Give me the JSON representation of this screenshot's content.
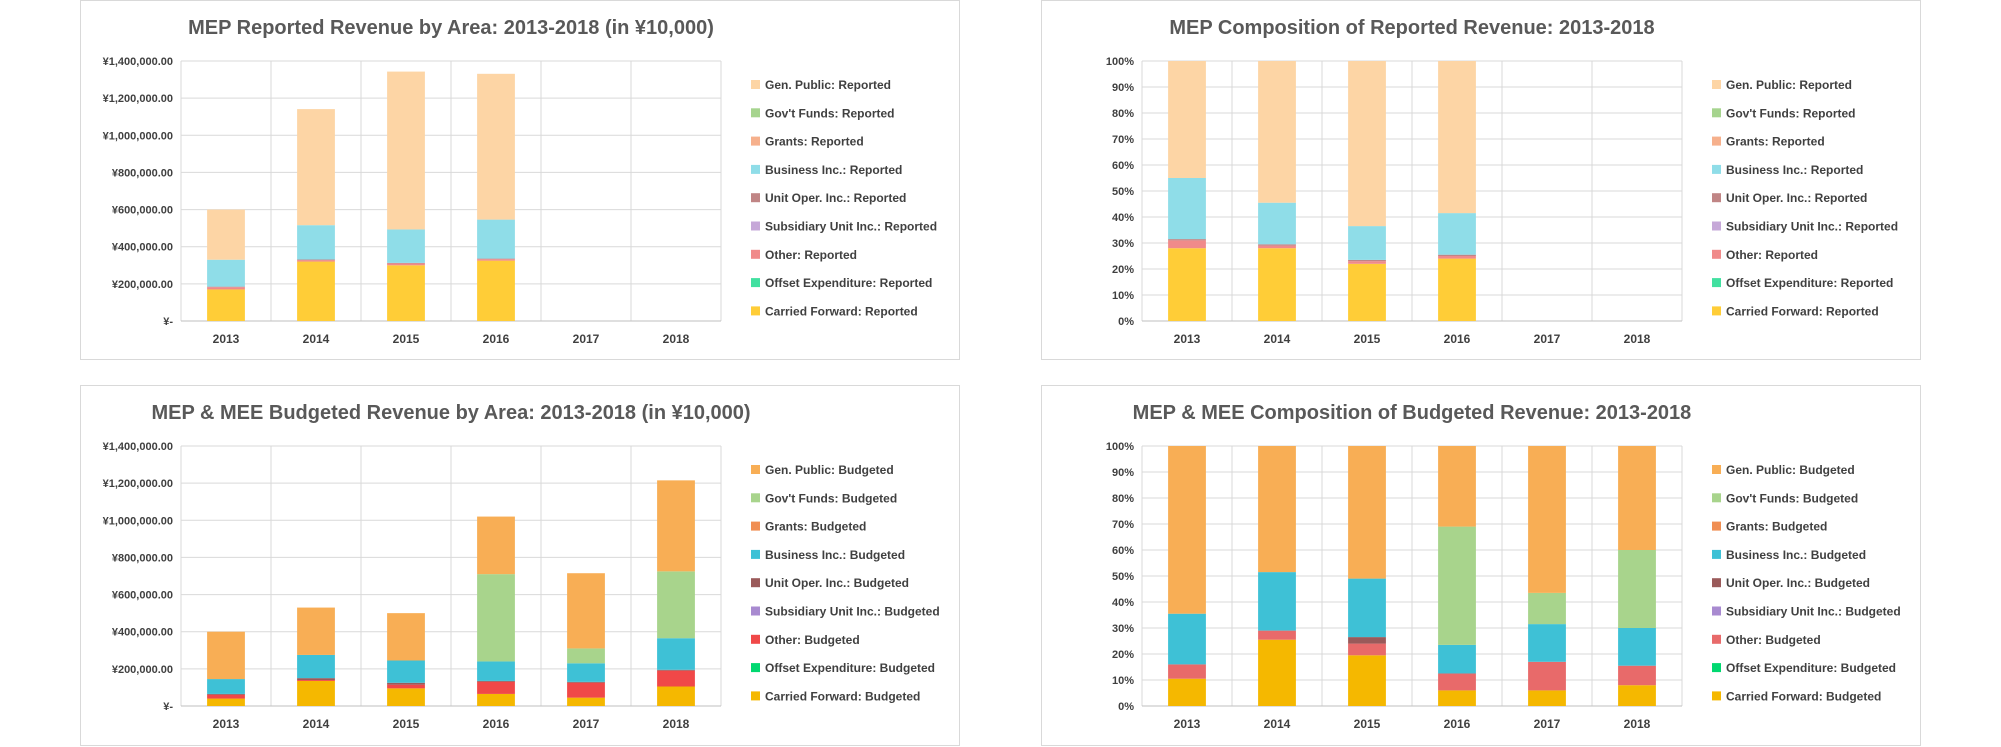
{
  "chart_data": [
    {
      "type": "bar",
      "stacked": true,
      "title": "MEP Reported Revenue by Area: 2013-2018 (in ¥10,000)",
      "categories": [
        "2013",
        "2014",
        "2015",
        "2016",
        "2017",
        "2018"
      ],
      "y_ticks": [
        "¥-",
        "¥200,000.00",
        "¥400,000.00",
        "¥600,000.00",
        "¥800,000.00",
        "¥1,000,000.00",
        "¥1,200,000.00",
        "¥1,400,000.00"
      ],
      "ylim": [
        0,
        1400000
      ],
      "grid": true,
      "legend_position": "right",
      "series": [
        {
          "name": "Carried Forward: Reported",
          "color": "#ffcd37",
          "values": [
            170000,
            320000,
            300000,
            325000,
            0,
            0
          ]
        },
        {
          "name": "Offset Expenditure: Reported",
          "color": "#41e0a0",
          "values": [
            0,
            0,
            0,
            0,
            0,
            0
          ]
        },
        {
          "name": "Other: Reported",
          "color": "#f08a8a",
          "values": [
            12000,
            8000,
            10000,
            8000,
            0,
            0
          ]
        },
        {
          "name": "Subsidiary Unit Inc.: Reported",
          "color": "#c6a8d8",
          "values": [
            0,
            0,
            0,
            0,
            0,
            0
          ]
        },
        {
          "name": "Unit Oper. Inc.: Reported",
          "color": "#c08585",
          "values": [
            3000,
            3000,
            3000,
            3000,
            0,
            0
          ]
        },
        {
          "name": "Business Inc.: Reported",
          "color": "#8fdde8",
          "values": [
            145000,
            185000,
            180000,
            210000,
            0,
            0
          ]
        },
        {
          "name": "Grants: Reported",
          "color": "#f6b08c",
          "values": [
            0,
            0,
            0,
            0,
            0,
            0
          ]
        },
        {
          "name": "Gov't Funds: Reported",
          "color": "#a6d48e",
          "values": [
            0,
            0,
            0,
            0,
            0,
            0
          ]
        },
        {
          "name": "Gen. Public: Reported",
          "color": "#fdd5a5",
          "values": [
            270000,
            625000,
            850000,
            785000,
            0,
            0
          ]
        }
      ]
    },
    {
      "type": "bar",
      "stacked": true,
      "percent": true,
      "title": "MEP Composition of Reported Revenue: 2013-2018",
      "categories": [
        "2013",
        "2014",
        "2015",
        "2016",
        "2017",
        "2018"
      ],
      "y_ticks": [
        "0%",
        "10%",
        "20%",
        "30%",
        "40%",
        "50%",
        "60%",
        "70%",
        "80%",
        "90%",
        "100%"
      ],
      "ylim": [
        0,
        100
      ],
      "grid": true,
      "legend_position": "right",
      "series": [
        {
          "name": "Carried Forward: Reported",
          "color": "#ffcd37",
          "values": [
            28,
            28,
            22,
            24,
            0,
            0
          ]
        },
        {
          "name": "Offset Expenditure: Reported",
          "color": "#41e0a0",
          "values": [
            0,
            0,
            0,
            0,
            0,
            0
          ]
        },
        {
          "name": "Other: Reported",
          "color": "#f08a8a",
          "values": [
            3,
            1,
            1,
            1,
            0,
            0
          ]
        },
        {
          "name": "Subsidiary Unit Inc.: Reported",
          "color": "#c6a8d8",
          "values": [
            0,
            0,
            0,
            0,
            0,
            0
          ]
        },
        {
          "name": "Unit Oper. Inc.: Reported",
          "color": "#c08585",
          "values": [
            0.5,
            0.5,
            0.5,
            0.5,
            0,
            0
          ]
        },
        {
          "name": "Business Inc.: Reported",
          "color": "#8fdde8",
          "values": [
            23.5,
            16,
            13,
            16,
            0,
            0
          ]
        },
        {
          "name": "Grants: Reported",
          "color": "#f6b08c",
          "values": [
            0,
            0,
            0,
            0,
            0,
            0
          ]
        },
        {
          "name": "Gov't Funds: Reported",
          "color": "#a6d48e",
          "values": [
            0,
            0,
            0,
            0,
            0,
            0
          ]
        },
        {
          "name": "Gen. Public: Reported",
          "color": "#fdd5a5",
          "values": [
            45,
            54.5,
            63.5,
            58.5,
            0,
            0
          ]
        }
      ]
    },
    {
      "type": "bar",
      "stacked": true,
      "title": "MEP & MEE Budgeted Revenue by Area: 2013-2018 (in ¥10,000)",
      "categories": [
        "2013",
        "2014",
        "2015",
        "2016",
        "2017",
        "2018"
      ],
      "y_ticks": [
        "¥-",
        "¥200,000.00",
        "¥400,000.00",
        "¥600,000.00",
        "¥800,000.00",
        "¥1,000,000.00",
        "¥1,200,000.00",
        "¥1,400,000.00"
      ],
      "ylim": [
        0,
        1400000
      ],
      "grid": true,
      "legend_position": "right",
      "series": [
        {
          "name": "Carried Forward: Budgeted",
          "color": "#f5b800",
          "values": [
            40000,
            135000,
            95000,
            65000,
            45000,
            105000
          ]
        },
        {
          "name": "Offset Expenditure: Budgeted",
          "color": "#00d870",
          "values": [
            0,
            0,
            0,
            0,
            0,
            0
          ]
        },
        {
          "name": "Other: Budgeted",
          "color": "#f04848",
          "values": [
            20000,
            5000,
            20000,
            65000,
            80000,
            85000
          ]
        },
        {
          "name": "Subsidiary Unit Inc.: Budgeted",
          "color": "#a88ad0",
          "values": [
            0,
            0,
            0,
            0,
            0,
            0
          ]
        },
        {
          "name": "Unit Oper. Inc.: Budgeted",
          "color": "#9a5a5a",
          "values": [
            5000,
            10000,
            10000,
            5000,
            5000,
            5000
          ]
        },
        {
          "name": "Business Inc.: Budgeted",
          "color": "#3ec1d6",
          "values": [
            80000,
            125000,
            120000,
            105000,
            100000,
            170000
          ]
        },
        {
          "name": "Grants: Budgeted",
          "color": "#f08e52",
          "values": [
            0,
            0,
            0,
            0,
            0,
            0
          ]
        },
        {
          "name": "Gov't Funds: Budgeted",
          "color": "#a8d48c",
          "values": [
            0,
            0,
            0,
            470000,
            80000,
            360000
          ]
        },
        {
          "name": "Gen. Public: Budgeted",
          "color": "#f8ae55",
          "values": [
            255000,
            255000,
            255000,
            310000,
            405000,
            490000
          ]
        }
      ]
    },
    {
      "type": "bar",
      "stacked": true,
      "percent": true,
      "title": "MEP & MEE Composition of Budgeted Revenue: 2013-2018",
      "categories": [
        "2013",
        "2014",
        "2015",
        "2016",
        "2017",
        "2018"
      ],
      "y_ticks": [
        "0%",
        "10%",
        "20%",
        "30%",
        "40%",
        "50%",
        "60%",
        "70%",
        "80%",
        "90%",
        "100%"
      ],
      "ylim": [
        0,
        100
      ],
      "grid": true,
      "legend_position": "right",
      "series": [
        {
          "name": "Carried Forward: Budgeted",
          "color": "#f5b800",
          "values": [
            10.5,
            25.5,
            19.5,
            6,
            6,
            8
          ]
        },
        {
          "name": "Offset Expenditure: Budgeted",
          "color": "#00d870",
          "values": [
            0,
            0,
            0,
            0,
            0,
            0
          ]
        },
        {
          "name": "Other: Budgeted",
          "color": "#e86a6a",
          "values": [
            5.5,
            3.5,
            4.5,
            6.5,
            11,
            7.5
          ]
        },
        {
          "name": "Subsidiary Unit Inc.: Budgeted",
          "color": "#a88ad0",
          "values": [
            0,
            0,
            0,
            0,
            0,
            0
          ]
        },
        {
          "name": "Unit Oper. Inc.: Budgeted",
          "color": "#9a5a5a",
          "values": [
            0,
            0,
            2.5,
            0,
            0,
            0
          ]
        },
        {
          "name": "Business Inc.: Budgeted",
          "color": "#3ec1d6",
          "values": [
            19.5,
            22.5,
            22.5,
            11,
            14.5,
            14.5
          ]
        },
        {
          "name": "Grants: Budgeted",
          "color": "#f08e52",
          "values": [
            0,
            0,
            0,
            0,
            0,
            0
          ]
        },
        {
          "name": "Gov't Funds: Budgeted",
          "color": "#a8d48c",
          "values": [
            0,
            0,
            0,
            45.5,
            12,
            30
          ]
        },
        {
          "name": "Gen. Public: Budgeted",
          "color": "#f8ae55",
          "values": [
            64.5,
            48.5,
            51,
            31,
            56.5,
            40
          ]
        }
      ]
    }
  ]
}
